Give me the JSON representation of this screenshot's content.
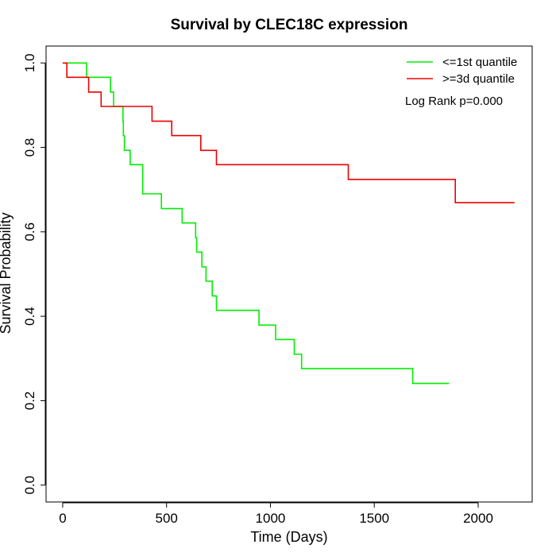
{
  "chart_data": {
    "type": "line",
    "step": true,
    "title": "Survival by CLEC18C expression",
    "xlabel": "Time (Days)",
    "ylabel": "Survival Probability",
    "xlim": [
      -80,
      2260
    ],
    "ylim": [
      -0.04,
      1.04
    ],
    "xticks": [
      0,
      500,
      1000,
      1500,
      2000
    ],
    "xtick_labels": [
      "0",
      "500",
      "1000",
      "1500",
      "2000"
    ],
    "yticks": [
      0.0,
      0.2,
      0.4,
      0.6,
      0.8,
      1.0
    ],
    "ytick_labels": [
      "0.0",
      "0.2",
      "0.4",
      "0.6",
      "0.8",
      "1.0"
    ],
    "grid": false,
    "legend_position": "top-right",
    "annotation": "Log Rank p=0.000",
    "series": [
      {
        "name": "<=1st quantile",
        "color": "#00ee00",
        "points": [
          [
            0,
            1.0
          ],
          [
            115,
            0.966
          ],
          [
            230,
            0.931
          ],
          [
            245,
            0.897
          ],
          [
            290,
            0.862
          ],
          [
            292,
            0.828
          ],
          [
            297,
            0.793
          ],
          [
            325,
            0.759
          ],
          [
            385,
            0.69
          ],
          [
            475,
            0.655
          ],
          [
            575,
            0.621
          ],
          [
            640,
            0.586
          ],
          [
            645,
            0.552
          ],
          [
            670,
            0.517
          ],
          [
            690,
            0.483
          ],
          [
            720,
            0.448
          ],
          [
            740,
            0.414
          ],
          [
            945,
            0.379
          ],
          [
            1025,
            0.345
          ],
          [
            1115,
            0.31
          ],
          [
            1150,
            0.276
          ],
          [
            1685,
            0.241
          ],
          [
            1860,
            0.241
          ]
        ]
      },
      {
        "name": ">=3d quantile",
        "color": "#ee0000",
        "points": [
          [
            0,
            1.0
          ],
          [
            20,
            0.966
          ],
          [
            125,
            0.931
          ],
          [
            185,
            0.897
          ],
          [
            430,
            0.862
          ],
          [
            525,
            0.828
          ],
          [
            665,
            0.793
          ],
          [
            740,
            0.759
          ],
          [
            1375,
            0.724
          ],
          [
            1890,
            0.669
          ],
          [
            2175,
            0.669
          ]
        ]
      }
    ]
  }
}
